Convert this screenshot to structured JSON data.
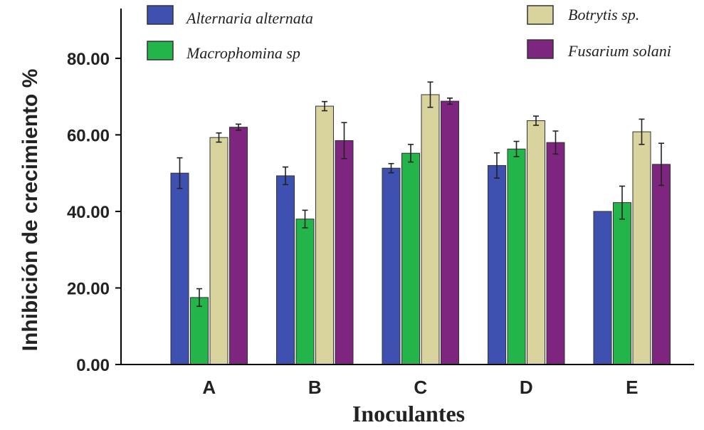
{
  "chart_data": {
    "type": "bar",
    "categories": [
      "A",
      "B",
      "C",
      "D",
      "E"
    ],
    "series": [
      {
        "name": "Alternaria alternata",
        "color": "#3f51b0",
        "values": [
          50.0,
          49.3,
          51.3,
          52.0,
          40.0
        ],
        "errors": [
          4.0,
          2.3,
          1.2,
          3.3,
          0.0
        ]
      },
      {
        "name": "Macrophomina sp",
        "color": "#23b54a",
        "values": [
          17.5,
          38.0,
          55.2,
          56.3,
          42.3
        ],
        "errors": [
          2.3,
          2.3,
          2.3,
          2.0,
          4.3
        ]
      },
      {
        "name": "Botrytis sp.",
        "color": "#d9d49d",
        "values": [
          59.3,
          67.5,
          70.5,
          63.7,
          60.8
        ],
        "errors": [
          1.2,
          1.2,
          3.3,
          1.2,
          3.3
        ]
      },
      {
        "name": "Fusarium solani",
        "color": "#7e2580",
        "values": [
          62.0,
          58.5,
          68.8,
          58.0,
          52.3
        ],
        "errors": [
          0.8,
          4.7,
          0.8,
          3.0,
          5.5
        ]
      }
    ],
    "yticks": [
      "0.00",
      "20.00",
      "40.00",
      "60.00",
      "80.00"
    ],
    "ylim": [
      0,
      93
    ],
    "xlabel": "Inoculantes",
    "ylabel": "Inhibición de crecimiento %",
    "legend_position": "top"
  }
}
